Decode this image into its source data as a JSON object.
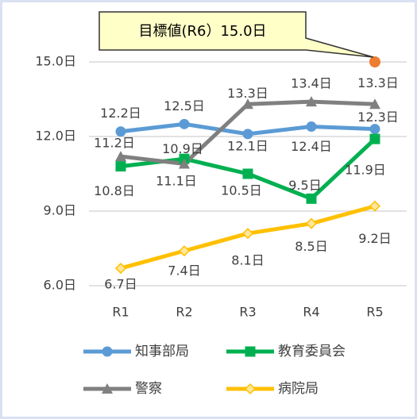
{
  "chart_data": {
    "type": "line",
    "categories": [
      "R1",
      "R2",
      "R3",
      "R4",
      "R5"
    ],
    "ylim": [
      6,
      15
    ],
    "yticks": [
      {
        "value": 6,
        "label": "6.0日"
      },
      {
        "value": 9,
        "label": "9.0日"
      },
      {
        "value": 12,
        "label": "12.0日"
      },
      {
        "value": 15,
        "label": "15.0日"
      }
    ],
    "grid": true,
    "series": [
      {
        "name": "知事部局",
        "color": "#5b9bd5",
        "marker": "circle",
        "values": [
          12.2,
          12.5,
          12.1,
          12.4,
          12.3
        ],
        "value_labels": [
          "12.2日",
          "12.5日",
          "12.1日",
          "12.4日",
          "12.3日"
        ]
      },
      {
        "name": "教育委員会",
        "color": "#00b050",
        "marker": "square",
        "values": [
          10.8,
          11.1,
          10.5,
          9.5,
          11.9
        ],
        "value_labels": [
          "10.8日",
          "11.1日",
          "10.5日",
          "9.5日",
          "11.9日"
        ]
      },
      {
        "name": "警察",
        "color": "#808080",
        "marker": "triangle",
        "values": [
          11.2,
          10.9,
          13.3,
          13.4,
          13.3
        ],
        "value_labels": [
          "11.2日",
          "10.9日",
          "13.3日",
          "13.4日",
          "13.3日"
        ]
      },
      {
        "name": "病院局",
        "color": "#ffc000",
        "marker": "diamond",
        "values": [
          6.7,
          7.4,
          8.1,
          8.5,
          9.2
        ],
        "value_labels": [
          "6.7日",
          "7.4日",
          "8.1日",
          "8.5日",
          "9.2日"
        ]
      }
    ],
    "target": {
      "label": "目標値(R6）15.0日",
      "category": "R5",
      "value": 15,
      "color": "#ed7d31"
    }
  }
}
